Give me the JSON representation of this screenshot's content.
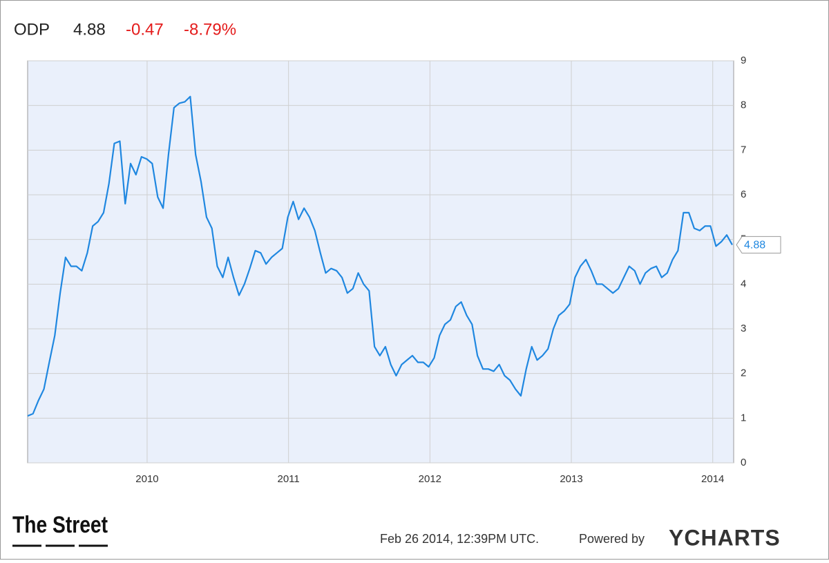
{
  "header": {
    "symbol": "ODP",
    "price": "4.88",
    "change": "-0.47",
    "change_percent": "-8.79%"
  },
  "footer": {
    "publisher": "The Street",
    "timestamp": "Feb 26 2014, 12:39PM UTC.",
    "powered_by": "Powered by",
    "brand": "YCHARTS"
  },
  "chart_data": {
    "type": "line",
    "x": [
      2009.155,
      2009.193,
      2009.232,
      2009.27,
      2009.308,
      2009.347,
      2009.385,
      2009.423,
      2009.462,
      2009.5,
      2009.538,
      2009.577,
      2009.615,
      2009.653,
      2009.692,
      2009.73,
      2009.768,
      2009.807,
      2009.845,
      2009.883,
      2009.921,
      2009.96,
      2009.998,
      2010.036,
      2010.075,
      2010.113,
      2010.151,
      2010.19,
      2010.228,
      2010.266,
      2010.305,
      2010.343,
      2010.381,
      2010.42,
      2010.458,
      2010.496,
      2010.535,
      2010.573,
      2010.611,
      2010.65,
      2010.688,
      2010.726,
      2010.765,
      2010.803,
      2010.841,
      2010.88,
      2010.918,
      2010.956,
      2010.995,
      2011.033,
      2011.071,
      2011.11,
      2011.148,
      2011.186,
      2011.225,
      2011.263,
      2011.301,
      2011.34,
      2011.378,
      2011.416,
      2011.455,
      2011.493,
      2011.531,
      2011.57,
      2011.608,
      2011.646,
      2011.685,
      2011.723,
      2011.761,
      2011.8,
      2011.838,
      2011.876,
      2011.915,
      2011.953,
      2011.991,
      2012.03,
      2012.068,
      2012.106,
      2012.145,
      2012.183,
      2012.221,
      2012.26,
      2012.298,
      2012.336,
      2012.375,
      2012.413,
      2012.451,
      2012.49,
      2012.528,
      2012.566,
      2012.605,
      2012.643,
      2012.681,
      2012.72,
      2012.758,
      2012.796,
      2012.835,
      2012.873,
      2012.911,
      2012.95,
      2012.988,
      2013.026,
      2013.064,
      2013.103,
      2013.141,
      2013.179,
      2013.218,
      2013.256,
      2013.294,
      2013.333,
      2013.371,
      2013.409,
      2013.448,
      2013.486,
      2013.524,
      2013.563,
      2013.601,
      2013.639,
      2013.678,
      2013.716,
      2013.754,
      2013.793,
      2013.831,
      2013.869,
      2013.908,
      2013.946,
      2013.984,
      2014.023,
      2014.061,
      2014.099,
      2014.138
    ],
    "series": [
      {
        "color": "#1f87e0",
        "values": [
          1.05,
          1.1,
          1.4,
          1.65,
          2.25,
          2.85,
          3.8,
          4.6,
          4.4,
          4.4,
          4.3,
          4.7,
          5.3,
          5.4,
          5.6,
          6.25,
          7.15,
          7.2,
          5.8,
          6.7,
          6.45,
          6.85,
          6.8,
          6.7,
          5.95,
          5.7,
          6.9,
          7.95,
          8.05,
          8.08,
          8.2,
          6.9,
          6.3,
          5.5,
          5.25,
          4.4,
          4.15,
          4.6,
          4.15,
          3.75,
          4.0,
          4.35,
          4.75,
          4.7,
          4.45,
          4.6,
          4.7,
          4.8,
          5.5,
          5.85,
          5.45,
          5.7,
          5.5,
          5.2,
          4.7,
          4.25,
          4.35,
          4.3,
          4.15,
          3.8,
          3.9,
          4.25,
          4.0,
          3.85,
          2.6,
          2.4,
          2.6,
          2.2,
          1.95,
          2.2,
          2.3,
          2.4,
          2.25,
          2.25,
          2.15,
          2.35,
          2.85,
          3.1,
          3.2,
          3.5,
          3.6,
          3.3,
          3.1,
          2.4,
          2.1,
          2.1,
          2.05,
          2.2,
          1.95,
          1.85,
          1.65,
          1.5,
          2.1,
          2.6,
          2.3,
          2.4,
          2.55,
          3.0,
          3.3,
          3.4,
          3.55,
          4.15,
          4.4,
          4.55,
          4.3,
          4.0,
          4.0,
          3.9,
          3.8,
          3.9,
          4.15,
          4.4,
          4.3,
          4.0,
          4.25,
          4.35,
          4.4,
          4.15,
          4.25,
          4.55,
          4.75,
          5.6,
          5.6,
          5.25,
          5.2,
          5.3,
          5.3,
          4.85,
          4.95,
          5.1,
          4.88
        ]
      }
    ],
    "xlim": [
      2009.155,
      2014.148
    ],
    "xticks": [
      2010,
      2011,
      2012,
      2013,
      2014
    ],
    "ylim": [
      0,
      9
    ],
    "yticks": [
      0,
      1,
      2,
      3,
      4,
      5,
      6,
      7,
      8,
      9
    ],
    "grid": true,
    "background": "#eaf0fb"
  }
}
